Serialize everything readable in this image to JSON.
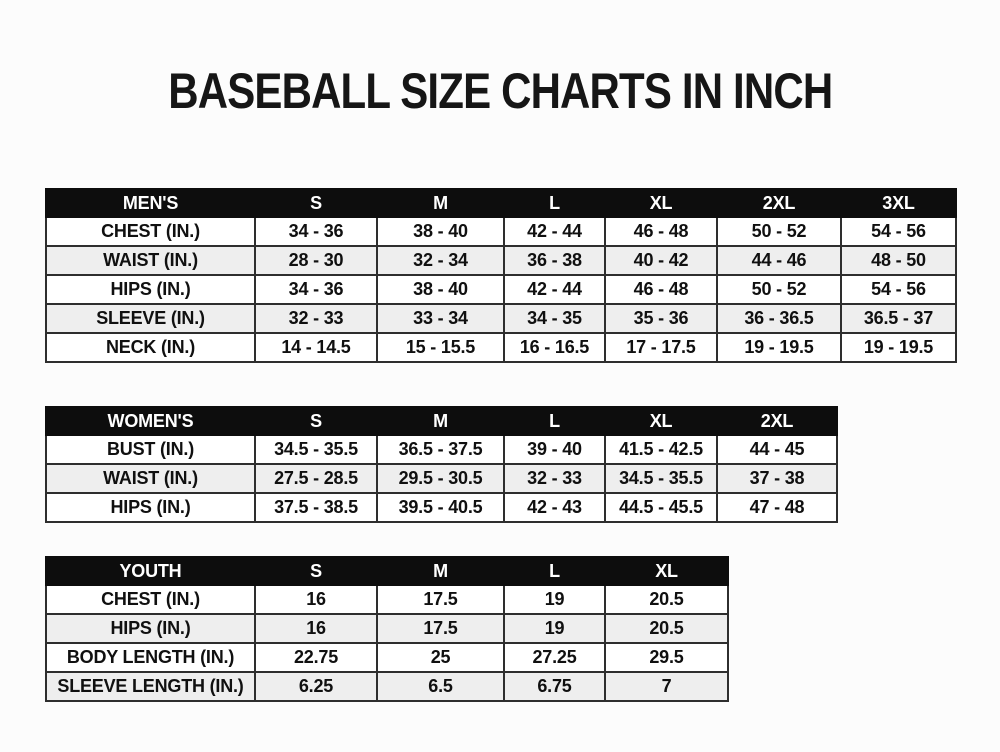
{
  "title": "BASEBALL SIZE CHARTS IN INCH",
  "unit": "INCH",
  "tables": [
    {
      "id": "mens",
      "header": [
        "MEN'S",
        "S",
        "M",
        "L",
        "XL",
        "2XL",
        "3XL"
      ],
      "rows": [
        [
          "CHEST (IN.)",
          "34 - 36",
          "38 - 40",
          "42 - 44",
          "46 - 48",
          "50 - 52",
          "54 - 56"
        ],
        [
          "WAIST (IN.)",
          "28 - 30",
          "32 - 34",
          "36 - 38",
          "40 - 42",
          "44 - 46",
          "48 - 50"
        ],
        [
          "HIPS (IN.)",
          "34 - 36",
          "38 - 40",
          "42 - 44",
          "46 - 48",
          "50 - 52",
          "54 - 56"
        ],
        [
          "SLEEVE (IN.)",
          "32 - 33",
          "33 - 34",
          "34 - 35",
          "35 - 36",
          "36 - 36.5",
          "36.5 - 37"
        ],
        [
          "NECK (IN.)",
          "14 - 14.5",
          "15 - 15.5",
          "16 - 16.5",
          "17 - 17.5",
          "19 - 19.5",
          "19 - 19.5"
        ]
      ]
    },
    {
      "id": "womens",
      "header": [
        "WOMEN'S",
        "S",
        "M",
        "L",
        "XL",
        "2XL"
      ],
      "rows": [
        [
          "BUST (IN.)",
          "34.5 - 35.5",
          "36.5 - 37.5",
          "39 - 40",
          "41.5 - 42.5",
          "44 - 45"
        ],
        [
          "WAIST (IN.)",
          "27.5 - 28.5",
          "29.5 - 30.5",
          "32 - 33",
          "34.5 - 35.5",
          "37 - 38"
        ],
        [
          "HIPS (IN.)",
          "37.5 - 38.5",
          "39.5 - 40.5",
          "42 - 43",
          "44.5 - 45.5",
          "47 - 48"
        ]
      ]
    },
    {
      "id": "youth",
      "header": [
        "YOUTH",
        "S",
        "M",
        "L",
        "XL"
      ],
      "rows": [
        [
          "CHEST (IN.)",
          "16",
          "17.5",
          "19",
          "20.5"
        ],
        [
          "HIPS (IN.)",
          "16",
          "17.5",
          "19",
          "20.5"
        ],
        [
          "BODY LENGTH (IN.)",
          "22.75",
          "25",
          "27.25",
          "29.5"
        ],
        [
          "SLEEVE LENGTH (IN.)",
          "6.25",
          "6.5",
          "6.75",
          "7"
        ]
      ]
    }
  ],
  "colors": {
    "header_bg": "#0d0d0d",
    "header_text": "#ffffff",
    "row_alt_bg": "#eeeeee",
    "border": "#2e2e2e",
    "text": "#101010",
    "background": "#fcfcfc"
  }
}
